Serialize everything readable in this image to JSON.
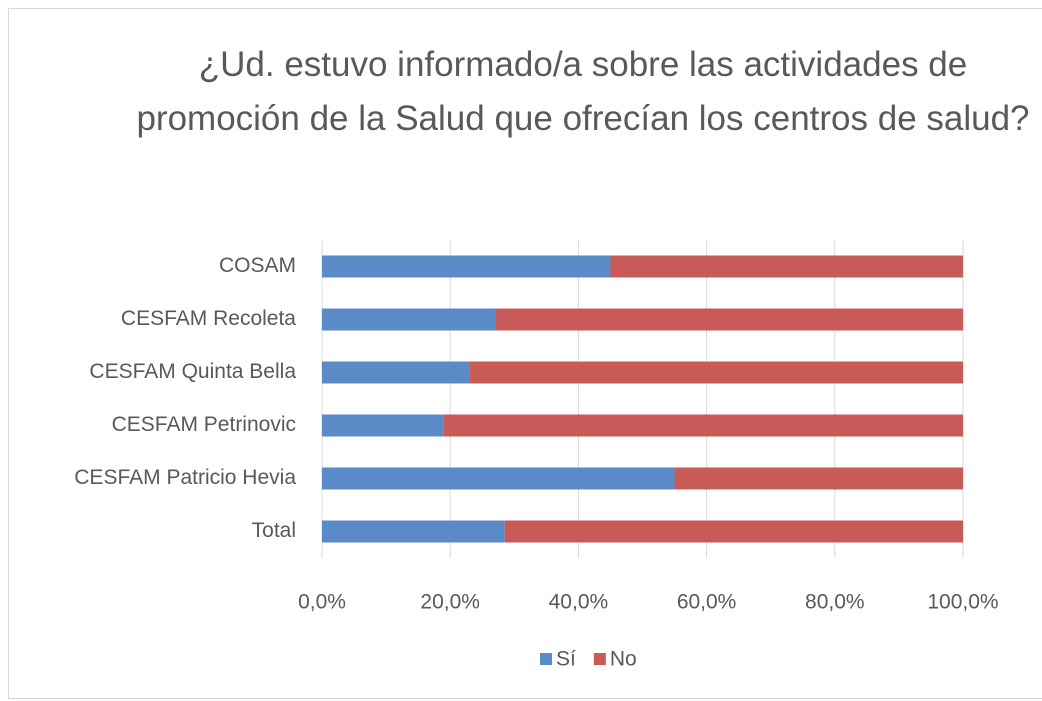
{
  "chart_data": {
    "type": "bar",
    "orientation": "horizontal",
    "stacked": true,
    "title": "¿Ud. estuvo informado/a sobre las actividades de promoción de la Salud que ofrecían los centros de salud?",
    "categories": [
      "COSAM",
      "CESFAM Recoleta",
      "CESFAM Quinta Bella",
      "CESFAM Petrinovic",
      "CESFAM Patricio Hevia",
      "Total"
    ],
    "series": [
      {
        "name": "Sí",
        "color": "#5b8bc6",
        "values": [
          45,
          27,
          23,
          19,
          55,
          28.5
        ]
      },
      {
        "name": "No",
        "color": "#c85a58",
        "values": [
          55,
          73,
          77,
          81,
          45,
          71.5
        ]
      }
    ],
    "xlim": [
      0,
      100
    ],
    "xticks": [
      {
        "value": 0,
        "label": "0,0%"
      },
      {
        "value": 20,
        "label": "20,0%"
      },
      {
        "value": 40,
        "label": "40,0%"
      },
      {
        "value": 60,
        "label": "60,0%"
      },
      {
        "value": 80,
        "label": "80,0%"
      },
      {
        "value": 100,
        "label": "100,0%"
      }
    ],
    "grid": true,
    "legend": "bottom"
  }
}
